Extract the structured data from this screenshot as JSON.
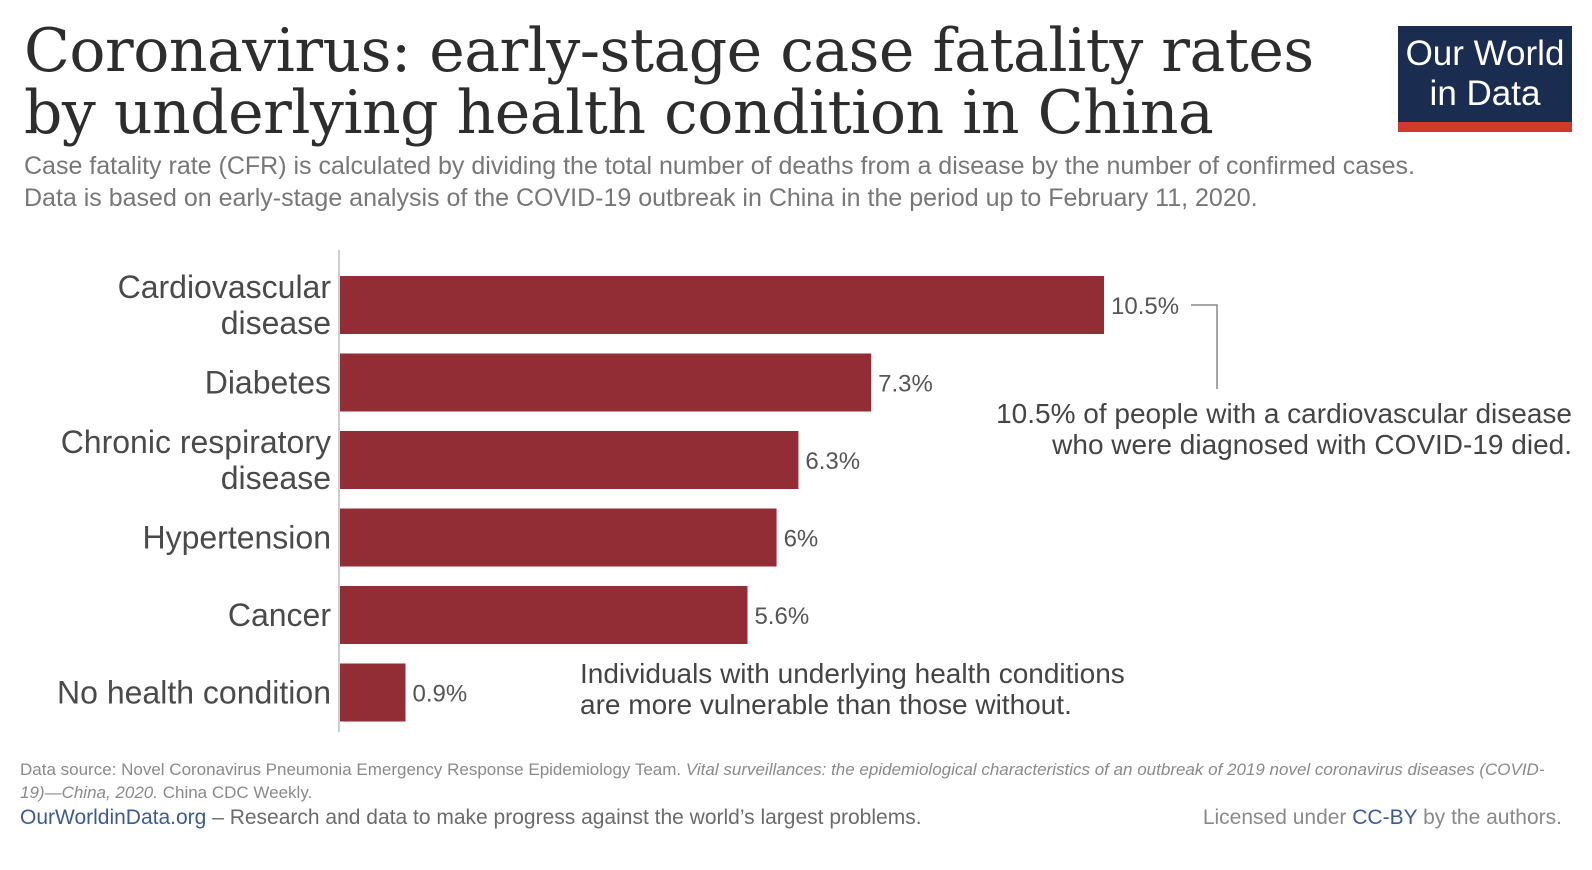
{
  "header": {
    "title": "Coronavirus: early-stage case fatality rates by underlying health condition in China",
    "subtitle_line1": "Case fatality rate (CFR) is calculated by dividing the total number of deaths from a disease by the number of confirmed cases.",
    "subtitle_line2": "Data is based on early-stage analysis of the COVID-19 outbreak in China in the period up to February 11, 2020."
  },
  "logo": {
    "line1": "Our World",
    "line2": "in Data"
  },
  "colors": {
    "bar": "#922c35",
    "axis": "#bdbdbd",
    "connector": "#888888",
    "logo_bg": "#1a2c50",
    "logo_accent": "#cf3a2b",
    "link": "#3d5a97"
  },
  "chart_data": {
    "type": "bar",
    "orientation": "horizontal",
    "categories": [
      [
        "Cardiovascular",
        "disease"
      ],
      [
        "Diabetes"
      ],
      [
        "Chronic respiratory",
        "disease"
      ],
      [
        "Hypertension"
      ],
      [
        "Cancer"
      ],
      [
        "No health condition"
      ]
    ],
    "values": [
      10.5,
      7.3,
      6.3,
      6,
      5.6,
      0.9
    ],
    "value_labels": [
      "10.5%",
      "7.3%",
      "6.3%",
      "6%",
      "5.6%",
      "0.9%"
    ],
    "unit": "%",
    "xlim": [
      0,
      10.5
    ],
    "grid": false
  },
  "annotations": {
    "cardio_line1": "10.5% of people with a cardiovascular disease",
    "cardio_line2": "who were diagnosed with COVID-19 died.",
    "vulnerable_line1": "Individuals with underlying health conditions",
    "vulnerable_line2": "are more vulnerable than those without."
  },
  "footer": {
    "source_prefix": "Data source: Novel Coronavirus Pneumonia Emergency Response Epidemiology Team.",
    "source_italic": "Vital surveillances: the epidemiological characteristics of an outbreak of 2019 novel coronavirus diseases (COVID-19)—China, 2020.",
    "source_suffix": "China CDC Weekly.",
    "site": "OurWorldinData.org",
    "tagline": "– Research and data to make progress against the world’s largest problems.",
    "license_prefix": "Licensed under",
    "license_link": "CC-BY",
    "license_suffix": "by the authors."
  }
}
